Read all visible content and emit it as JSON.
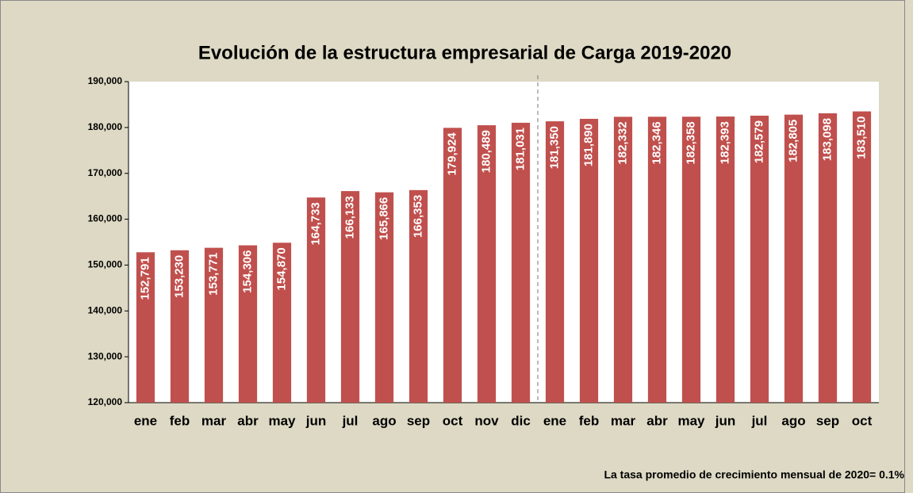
{
  "chart_data": {
    "type": "bar",
    "title": "Evolución de la estructura empresarial de Carga 2019-2020",
    "annotation": "La tasa promedio de crecimiento mensual de 2020= 0.1%",
    "categories": [
      "ene",
      "feb",
      "mar",
      "abr",
      "may",
      "jun",
      "jul",
      "ago",
      "sep",
      "oct",
      "nov",
      "dic",
      "ene",
      "feb",
      "mar",
      "abr",
      "may",
      "jun",
      "jul",
      "ago",
      "sep",
      "oct"
    ],
    "values": [
      152791,
      153230,
      153771,
      154306,
      154870,
      164733,
      166133,
      165866,
      166353,
      179924,
      180489,
      181031,
      181350,
      181890,
      182332,
      182346,
      182358,
      182393,
      182579,
      182805,
      183098,
      183510
    ],
    "value_labels": [
      "152,791",
      "153,230",
      "153,771",
      "154,306",
      "154,870",
      "164,733",
      "166,133",
      "165,866",
      "166,353",
      "179,924",
      "180,489",
      "181,031",
      "181,350",
      "181,890",
      "182,332",
      "182,346",
      "182,358",
      "182,393",
      "182,579",
      "182,805",
      "183,098",
      "183,510"
    ],
    "color": "#c0504d",
    "ylim": [
      120000,
      190000
    ],
    "yticks": [
      {
        "value": 120000,
        "label": "120,000"
      },
      {
        "value": 130000,
        "label": "130,000"
      },
      {
        "value": 140000,
        "label": "140,000"
      },
      {
        "value": 150000,
        "label": "150,000"
      },
      {
        "value": 160000,
        "label": "160,000"
      },
      {
        "value": 170000,
        "label": "170,000"
      },
      {
        "value": 180000,
        "label": "180,000"
      },
      {
        "value": 190000,
        "label": "190,000"
      }
    ],
    "grid": false
  }
}
